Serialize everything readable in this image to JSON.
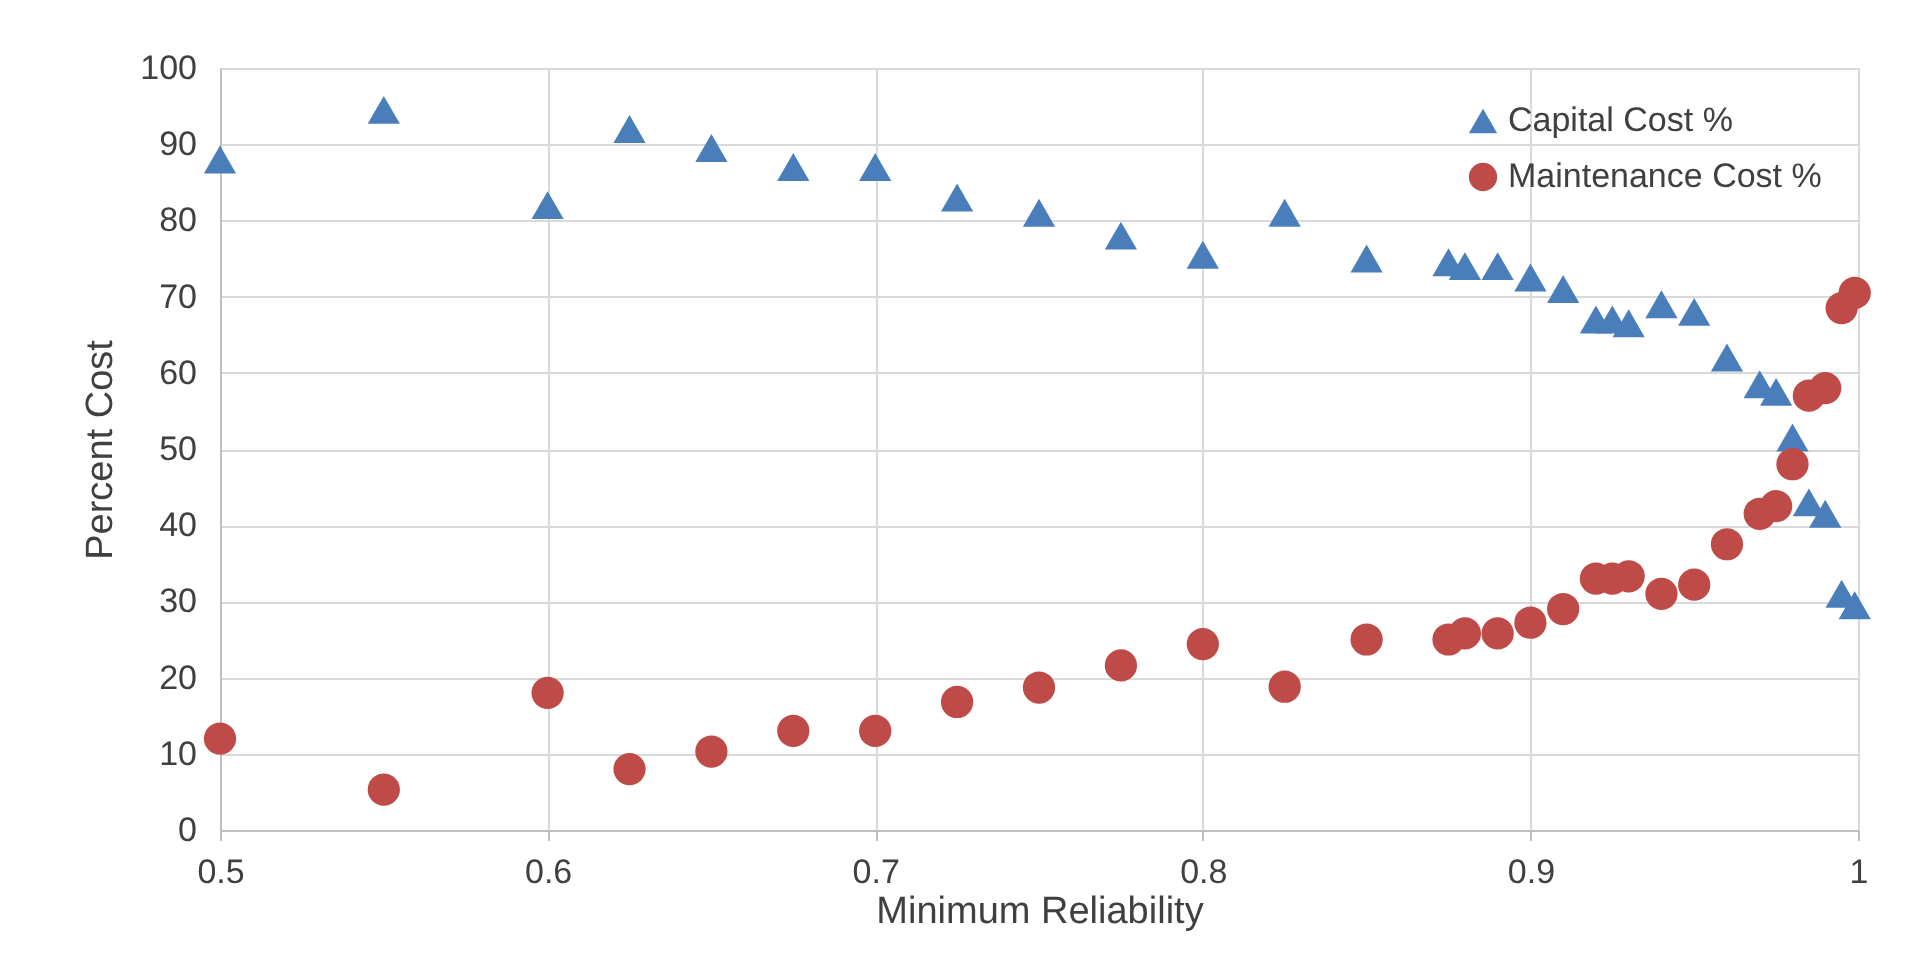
{
  "chart_data": {
    "type": "scatter",
    "xlabel": "Minimum Reliability",
    "ylabel": "Percent Cost",
    "x": [
      0.5,
      0.55,
      0.6,
      0.625,
      0.65,
      0.675,
      0.7,
      0.725,
      0.75,
      0.775,
      0.8,
      0.825,
      0.85,
      0.875,
      0.88,
      0.89,
      0.9,
      0.91,
      0.92,
      0.925,
      0.93,
      0.94,
      0.95,
      0.96,
      0.97,
      0.975,
      0.98,
      0.985,
      0.99,
      0.995,
      0.999
    ],
    "series": [
      {
        "name": "Capital Cost %",
        "color": "#4a7ebb",
        "marker": "triangle",
        "values": [
          88,
          94.5,
          82,
          92,
          89.5,
          87,
          87,
          83,
          81,
          78,
          75.5,
          81,
          75,
          74.5,
          74,
          74,
          72.5,
          71,
          67,
          67,
          66.5,
          69,
          68,
          62,
          58.5,
          57.5,
          51.5,
          43,
          41.5,
          31,
          29.5
        ]
      },
      {
        "name": "Maintenance Cost %",
        "color": "#be4b48",
        "marker": "circle",
        "values": [
          12,
          5.3,
          18,
          8,
          10.3,
          13,
          13,
          16.8,
          18.7,
          21.6,
          24.4,
          18.8,
          25,
          25,
          25.8,
          25.8,
          27.2,
          29,
          33,
          33,
          33.3,
          31,
          32.2,
          37.5,
          41.5,
          42.5,
          48,
          57,
          58,
          68.5,
          70.5
        ]
      }
    ],
    "xlim": [
      0.5,
      1
    ],
    "xticks": [
      0.5,
      0.6,
      0.7,
      0.8,
      0.9,
      1
    ],
    "ylim": [
      0,
      100
    ],
    "yticks": [
      0,
      10,
      20,
      30,
      40,
      50,
      60,
      70,
      80,
      90,
      100
    ],
    "grid": true,
    "legend": "top right"
  }
}
